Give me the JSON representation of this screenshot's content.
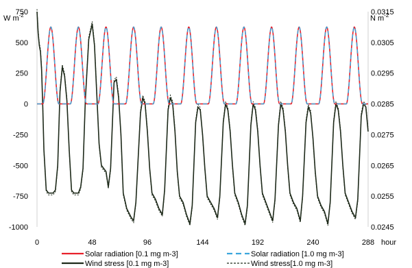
{
  "chart_data": {
    "type": "line",
    "title": "",
    "xlabel": "hour",
    "y_left_unit": "W m",
    "y_left_unit_sup": "-2",
    "y_right_unit": "N m",
    "y_right_unit_sup": "-2",
    "xlim": [
      0,
      288
    ],
    "ylim_left": [
      -1000,
      750
    ],
    "ylim_right": [
      0.0245,
      0.0315
    ],
    "x_ticks": [
      "0",
      "48",
      "96",
      "144",
      "192",
      "240",
      "288"
    ],
    "y_left_ticks": [
      "750",
      "500",
      "250",
      "0",
      "-250",
      "-500",
      "-750",
      "-1000"
    ],
    "y_right_ticks": [
      "0.0315",
      "0.0305",
      "0.0295",
      "0.0285",
      "0.0275",
      "0.0265",
      "0.0255",
      "0.0245"
    ],
    "grid": false,
    "legend_position": "bottom",
    "series": [
      {
        "name": "Solar radiation [0.1 mg m-3]",
        "axis": "left",
        "color": "#e8202a",
        "style": "solid",
        "daily_peak": 625,
        "day_start_hour": 5,
        "day_end_hour": 19
      },
      {
        "name": "Solar radiation [1.0 mg m-3]",
        "axis": "left",
        "color": "#3aa6dc",
        "style": "dashed",
        "daily_peak": 625,
        "day_start_hour": 5,
        "day_end_hour": 19
      },
      {
        "name": "Wind stress [0.1 mg m-3]",
        "axis": "right",
        "color": "#1e2a1a",
        "style": "solid",
        "points": [
          [
            0,
            0.0315
          ],
          [
            1,
            0.0308
          ],
          [
            2,
            0.0304
          ],
          [
            3,
            0.0302
          ],
          [
            4,
            0.0296
          ],
          [
            5,
            0.0284
          ],
          [
            6,
            0.027
          ],
          [
            8,
            0.0257
          ],
          [
            10,
            0.0256
          ],
          [
            14,
            0.0256
          ],
          [
            16,
            0.0257
          ],
          [
            18,
            0.0265
          ],
          [
            20,
            0.0289
          ],
          [
            22,
            0.0297
          ],
          [
            24,
            0.0294
          ],
          [
            26,
            0.0286
          ],
          [
            28,
            0.027
          ],
          [
            30,
            0.0257
          ],
          [
            32,
            0.0256
          ],
          [
            36,
            0.0256
          ],
          [
            38,
            0.0258
          ],
          [
            40,
            0.0264
          ],
          [
            42,
            0.0286
          ],
          [
            45,
            0.0306
          ],
          [
            48,
            0.0311
          ],
          [
            50,
            0.0304
          ],
          [
            52,
            0.0288
          ],
          [
            54,
            0.0272
          ],
          [
            56,
            0.0265
          ],
          [
            60,
            0.0263
          ],
          [
            62,
            0.0258
          ],
          [
            64,
            0.0264
          ],
          [
            67,
            0.0292
          ],
          [
            69,
            0.0293
          ],
          [
            71,
            0.0287
          ],
          [
            73,
            0.0275
          ],
          [
            75,
            0.0256
          ],
          [
            78,
            0.0251
          ],
          [
            82,
            0.0248
          ],
          [
            84,
            0.0247
          ],
          [
            86,
            0.0253
          ],
          [
            90,
            0.0282
          ],
          [
            92,
            0.0287
          ],
          [
            94,
            0.0285
          ],
          [
            96,
            0.0276
          ],
          [
            98,
            0.0264
          ],
          [
            100,
            0.0256
          ],
          [
            103,
            0.0254
          ],
          [
            106,
            0.0251
          ],
          [
            109,
            0.0249
          ],
          [
            111,
            0.0257
          ],
          [
            114,
            0.0283
          ],
          [
            116,
            0.0287
          ],
          [
            118,
            0.0285
          ],
          [
            120,
            0.0276
          ],
          [
            122,
            0.0263
          ],
          [
            124,
            0.0255
          ],
          [
            127,
            0.0253
          ],
          [
            130,
            0.0249
          ],
          [
            133,
            0.0246
          ],
          [
            135,
            0.0252
          ],
          [
            138,
            0.0279
          ],
          [
            140,
            0.0284
          ],
          [
            142,
            0.0283
          ],
          [
            144,
            0.0275
          ],
          [
            146,
            0.0264
          ],
          [
            148,
            0.0255
          ],
          [
            151,
            0.0253
          ],
          [
            154,
            0.0251
          ],
          [
            157,
            0.0248
          ],
          [
            159,
            0.0255
          ],
          [
            162,
            0.0279
          ],
          [
            164,
            0.0285
          ],
          [
            166,
            0.0283
          ],
          [
            168,
            0.0276
          ],
          [
            170,
            0.0265
          ],
          [
            172,
            0.0256
          ],
          [
            175,
            0.0253
          ],
          [
            178,
            0.0249
          ],
          [
            181,
            0.0246
          ],
          [
            183,
            0.0252
          ],
          [
            186,
            0.0278
          ],
          [
            188,
            0.0285
          ],
          [
            190,
            0.0283
          ],
          [
            192,
            0.0276
          ],
          [
            194,
            0.0265
          ],
          [
            196,
            0.0256
          ],
          [
            199,
            0.0253
          ],
          [
            202,
            0.025
          ],
          [
            205,
            0.0247
          ],
          [
            207,
            0.0254
          ],
          [
            210,
            0.0278
          ],
          [
            212,
            0.0285
          ],
          [
            214,
            0.0283
          ],
          [
            216,
            0.0276
          ],
          [
            218,
            0.0265
          ],
          [
            220,
            0.0256
          ],
          [
            223,
            0.0253
          ],
          [
            226,
            0.0251
          ],
          [
            229,
            0.0247
          ],
          [
            231,
            0.0255
          ],
          [
            234,
            0.0279
          ],
          [
            236,
            0.0284
          ],
          [
            238,
            0.0282
          ],
          [
            240,
            0.0274
          ],
          [
            242,
            0.0263
          ],
          [
            244,
            0.0255
          ],
          [
            247,
            0.0252
          ],
          [
            250,
            0.025
          ],
          [
            253,
            0.0246
          ],
          [
            255,
            0.0253
          ],
          [
            258,
            0.0279
          ],
          [
            260,
            0.0285
          ],
          [
            262,
            0.0283
          ],
          [
            264,
            0.0276
          ],
          [
            266,
            0.0265
          ],
          [
            268,
            0.0256
          ],
          [
            271,
            0.0253
          ],
          [
            274,
            0.025
          ],
          [
            277,
            0.0248
          ],
          [
            279,
            0.0254
          ],
          [
            282,
            0.0281
          ],
          [
            284,
            0.0285
          ],
          [
            286,
            0.0284
          ],
          [
            288,
            0.0276
          ]
        ]
      },
      {
        "name": "Wind stress[1.0 mg m-3]",
        "axis": "right",
        "color": "#1e2a1a",
        "style": "dotted"
      }
    ]
  }
}
